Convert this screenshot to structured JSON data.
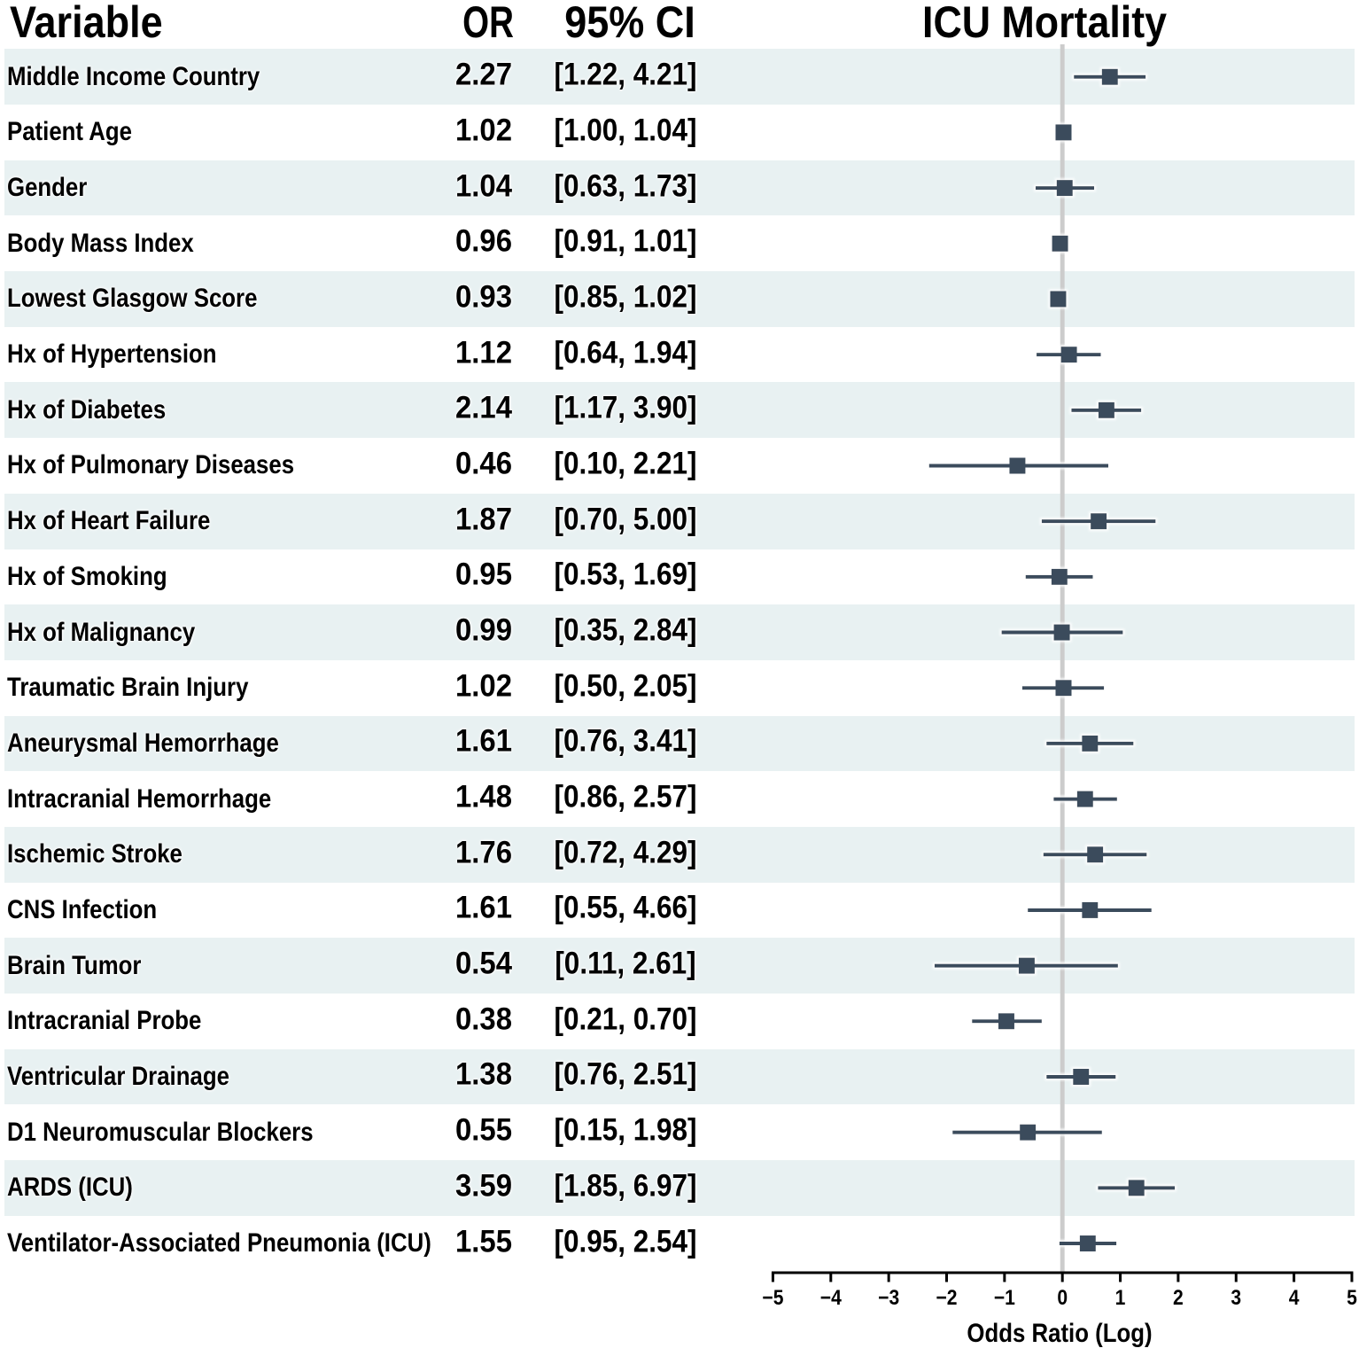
{
  "columns": {
    "variable": "Variable",
    "or": "OR",
    "ci": "95% CI"
  },
  "chart_data": {
    "type": "forest",
    "title": "ICU Mortality",
    "xlabel": "Odds Ratio (Log)",
    "xlim": [
      -5,
      5
    ],
    "xticks": [
      -5,
      -4,
      -3,
      -2,
      -1,
      0,
      1,
      2,
      3,
      4,
      5
    ],
    "xtick_labels": [
      "−5",
      "−4",
      "−3",
      "−2",
      "−1",
      "0",
      "1",
      "2",
      "3",
      "4",
      "5"
    ],
    "x_scale_note": "markers plotted at natural log of odds ratio",
    "reference_line_x": 0,
    "grid": false,
    "rows": [
      {
        "label": "Middle Income Country",
        "or": 2.27,
        "ci_low": 1.22,
        "ci_high": 4.21,
        "or_text": "2.27",
        "ci_text": "[1.22, 4.21]"
      },
      {
        "label": "Patient Age",
        "or": 1.02,
        "ci_low": 1.0,
        "ci_high": 1.04,
        "or_text": "1.02",
        "ci_text": "[1.00, 1.04]"
      },
      {
        "label": "Gender",
        "or": 1.04,
        "ci_low": 0.63,
        "ci_high": 1.73,
        "or_text": "1.04",
        "ci_text": "[0.63, 1.73]"
      },
      {
        "label": "Body Mass Index",
        "or": 0.96,
        "ci_low": 0.91,
        "ci_high": 1.01,
        "or_text": "0.96",
        "ci_text": "[0.91, 1.01]"
      },
      {
        "label": "Lowest Glasgow Score",
        "or": 0.93,
        "ci_low": 0.85,
        "ci_high": 1.02,
        "or_text": "0.93",
        "ci_text": "[0.85, 1.02]"
      },
      {
        "label": "Hx of Hypertension",
        "or": 1.12,
        "ci_low": 0.64,
        "ci_high": 1.94,
        "or_text": "1.12",
        "ci_text": "[0.64, 1.94]"
      },
      {
        "label": "Hx of Diabetes",
        "or": 2.14,
        "ci_low": 1.17,
        "ci_high": 3.9,
        "or_text": "2.14",
        "ci_text": "[1.17, 3.90]"
      },
      {
        "label": "Hx of Pulmonary Diseases",
        "or": 0.46,
        "ci_low": 0.1,
        "ci_high": 2.21,
        "or_text": "0.46",
        "ci_text": "[0.10, 2.21]"
      },
      {
        "label": "Hx of Heart Failure",
        "or": 1.87,
        "ci_low": 0.7,
        "ci_high": 5.0,
        "or_text": "1.87",
        "ci_text": "[0.70, 5.00]"
      },
      {
        "label": "Hx of Smoking",
        "or": 0.95,
        "ci_low": 0.53,
        "ci_high": 1.69,
        "or_text": "0.95",
        "ci_text": "[0.53, 1.69]"
      },
      {
        "label": "Hx of Malignancy",
        "or": 0.99,
        "ci_low": 0.35,
        "ci_high": 2.84,
        "or_text": "0.99",
        "ci_text": "[0.35, 2.84]"
      },
      {
        "label": "Traumatic Brain Injury",
        "or": 1.02,
        "ci_low": 0.5,
        "ci_high": 2.05,
        "or_text": "1.02",
        "ci_text": "[0.50, 2.05]"
      },
      {
        "label": "Aneurysmal Hemorrhage",
        "or": 1.61,
        "ci_low": 0.76,
        "ci_high": 3.41,
        "or_text": "1.61",
        "ci_text": "[0.76, 3.41]"
      },
      {
        "label": "Intracranial Hemorrhage",
        "or": 1.48,
        "ci_low": 0.86,
        "ci_high": 2.57,
        "or_text": "1.48",
        "ci_text": "[0.86, 2.57]"
      },
      {
        "label": "Ischemic Stroke",
        "or": 1.76,
        "ci_low": 0.72,
        "ci_high": 4.29,
        "or_text": "1.76",
        "ci_text": "[0.72, 4.29]"
      },
      {
        "label": "CNS Infection",
        "or": 1.61,
        "ci_low": 0.55,
        "ci_high": 4.66,
        "or_text": "1.61",
        "ci_text": "[0.55, 4.66]"
      },
      {
        "label": "Brain Tumor",
        "or": 0.54,
        "ci_low": 0.11,
        "ci_high": 2.61,
        "or_text": "0.54",
        "ci_text": "[0.11, 2.61]"
      },
      {
        "label": "Intracranial Probe",
        "or": 0.38,
        "ci_low": 0.21,
        "ci_high": 0.7,
        "or_text": "0.38",
        "ci_text": "[0.21, 0.70]"
      },
      {
        "label": "Ventricular Drainage",
        "or": 1.38,
        "ci_low": 0.76,
        "ci_high": 2.51,
        "or_text": "1.38",
        "ci_text": "[0.76, 2.51]"
      },
      {
        "label": "D1 Neuromuscular Blockers",
        "or": 0.55,
        "ci_low": 0.15,
        "ci_high": 1.98,
        "or_text": "0.55",
        "ci_text": "[0.15, 1.98]"
      },
      {
        "label": "ARDS (ICU)",
        "or": 3.59,
        "ci_low": 1.85,
        "ci_high": 6.97,
        "or_text": "3.59",
        "ci_text": "[1.85, 6.97]"
      },
      {
        "label": "Ventilator-Associated Pneumonia (ICU)",
        "or": 1.55,
        "ci_low": 0.95,
        "ci_high": 2.54,
        "or_text": "1.55",
        "ci_text": "[0.95, 2.54]"
      }
    ]
  },
  "colors": {
    "background": "#ffffff",
    "band": "#e8f1f2",
    "marker": "#3a4c5c",
    "reference_line": "#cccccc",
    "axis": "#000000",
    "text": "#000000"
  }
}
